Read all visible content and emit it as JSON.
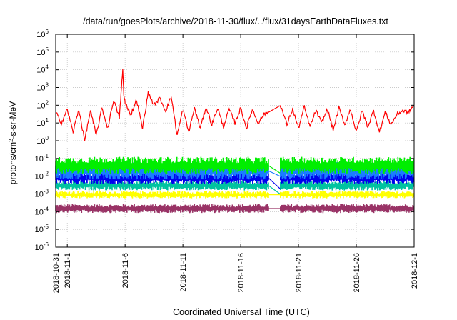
{
  "chart_data": {
    "type": "line",
    "title": "/data/run/goesPlots/archive/2018-11-30/flux/../flux/31daysEarthDataFluxes.txt",
    "xlabel": "Coordinated Universal Time (UTC)",
    "ylabel_main": "protons/cm",
    "ylabel_sup": "2",
    "ylabel_rest": "-s-sr-MeV",
    "yscale": "log",
    "ylim": [
      1e-06,
      1000000.0
    ],
    "ytick_exponents": [
      -6,
      -5,
      -4,
      -3,
      -2,
      -1,
      0,
      1,
      2,
      3,
      4,
      5,
      6
    ],
    "ytick_base": "10",
    "xlim": [
      "2018-10-31",
      "2018-12-01"
    ],
    "xticks": [
      {
        "day": 0,
        "label": "2018-10-31"
      },
      {
        "day": 1,
        "label": "2018-11-1"
      },
      {
        "day": 6,
        "label": "2018-11-6"
      },
      {
        "day": 11,
        "label": "2018-11-11"
      },
      {
        "day": 16,
        "label": "2018-11-16"
      },
      {
        "day": 21,
        "label": "2018-11-21"
      },
      {
        "day": 26,
        "label": "2018-11-26"
      },
      {
        "day": 31,
        "label": "2018-12-1"
      }
    ],
    "grid": true,
    "data_gap_days": [
      18.4,
      19.4
    ],
    "series": [
      {
        "color": "#ff0000",
        "noise": 0.22,
        "x": [
          0,
          0.5,
          1.0,
          1.5,
          2.0,
          2.5,
          3.0,
          3.5,
          4.0,
          4.5,
          5.0,
          5.5,
          5.8,
          5.9,
          6.0,
          6.5,
          7.0,
          7.5,
          8.0,
          8.5,
          9.0,
          9.5,
          10.0,
          10.5,
          11.0,
          11.5,
          12.0,
          12.5,
          13.0,
          13.5,
          14.0,
          14.5,
          15.0,
          15.5,
          16.0,
          16.5,
          17.0,
          17.5,
          18.0,
          18.4,
          19.4,
          20.0,
          20.5,
          21.0,
          21.5,
          22.0,
          22.5,
          23.0,
          23.5,
          24.0,
          24.5,
          25.0,
          25.5,
          26.0,
          26.5,
          27.0,
          27.5,
          28.0,
          28.5,
          29.0,
          29.5,
          30.0,
          30.5,
          31.0
        ],
        "y": [
          40,
          10,
          60,
          3,
          60,
          1,
          50,
          2,
          70,
          5,
          200,
          20,
          10000,
          300,
          150,
          30,
          200,
          5,
          500,
          100,
          250,
          50,
          300,
          2,
          60,
          3,
          70,
          5,
          80,
          8,
          70,
          6,
          60,
          10,
          70,
          5,
          60,
          10,
          30,
          40,
          120,
          8,
          60,
          5,
          80,
          6,
          50,
          10,
          60,
          4,
          70,
          8,
          60,
          3,
          50,
          6,
          50,
          3,
          40,
          8,
          30,
          50,
          40,
          100
        ]
      },
      {
        "color": "#00ee00",
        "center": 0.04,
        "spread": 0.35,
        "dip": 0.015
      },
      {
        "color": "#1a7dff",
        "center": 0.02,
        "spread": 0.35,
        "dip": 0.01
      },
      {
        "color": "#0000ee",
        "center": 0.008,
        "spread": 0.25,
        "dip": 0.002
      },
      {
        "color": "#00c3a0",
        "center": 0.003,
        "spread": 0.2,
        "dip": 0.001
      },
      {
        "color": "#ffff00",
        "center": 0.0009,
        "spread": 0.15,
        "dip": 0.0009
      },
      {
        "color": "#993366",
        "center": 0.00015,
        "spread": 0.18,
        "dip": 0.00015
      }
    ]
  }
}
